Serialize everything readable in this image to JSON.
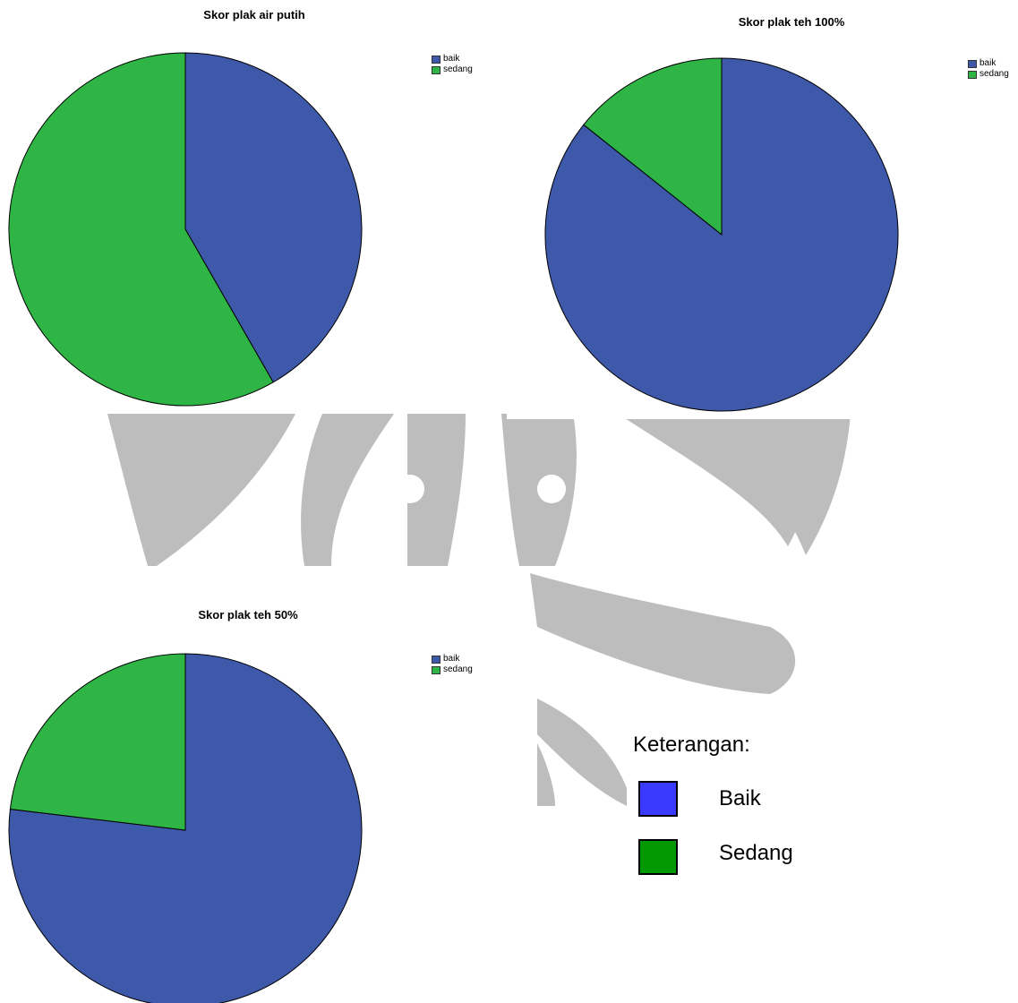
{
  "colors": {
    "baik": "#3f59aa",
    "sedang": "#2eb545",
    "watermark": "#bdbdbd"
  },
  "watermark_icon": "university-emblem-watermark",
  "chart_data": [
    {
      "type": "pie",
      "title": "Skor plak air putih",
      "labels": [
        "baik",
        "sedang"
      ],
      "values": [
        41.7,
        58.3
      ],
      "legend": [
        "baik",
        "sedang"
      ],
      "legend_position": "top-right"
    },
    {
      "type": "pie",
      "title": "Skor plak teh 100%",
      "labels": [
        "baik",
        "sedang"
      ],
      "values": [
        85.7,
        14.3
      ],
      "legend": [
        "baik",
        "sedang"
      ],
      "legend_position": "top-right"
    },
    {
      "type": "pie",
      "title": "Skor plak teh 50%",
      "labels": [
        "baik",
        "sedang"
      ],
      "values": [
        76.9,
        23.1
      ],
      "legend": [
        "baik",
        "sedang"
      ],
      "legend_position": "top-right"
    }
  ],
  "keterangan": {
    "title": "Keterangan:",
    "items": [
      {
        "label": "Baik",
        "color": "#3a3aff"
      },
      {
        "label": "Sedang",
        "color": "#009900"
      }
    ]
  }
}
